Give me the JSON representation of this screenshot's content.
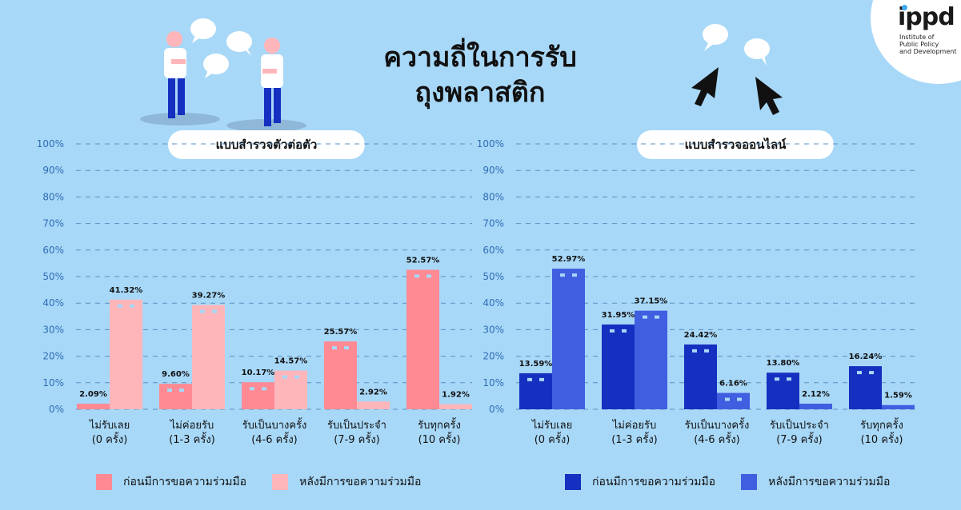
{
  "title_line1": "ความถี่ในการรับ",
  "title_line2": "ถุงพลาสติก",
  "logo": {
    "name": "ippd",
    "subtitle_lines": [
      "Institute of",
      "Public Policy",
      "and Development"
    ]
  },
  "colors": {
    "background": "#a8d8f8",
    "offline_before": "#ff8a94",
    "offline_after": "#ffb6ba",
    "online_before": "#1530c0",
    "online_after": "#3f5ee0"
  },
  "chart_data": [
    {
      "type": "bar",
      "title": "แบบสำรวจตัวต่อตัว",
      "ylim": [
        0,
        100
      ],
      "yticks": [
        "0%",
        "10%",
        "20%",
        "30%",
        "40%",
        "50%",
        "60%",
        "70%",
        "80%",
        "90%",
        "100%"
      ],
      "categories": [
        [
          "ไม่รับเลย",
          "(0 ครั้ง)"
        ],
        [
          "ไม่ค่อยรับ",
          "(1-3 ครั้ง)"
        ],
        [
          "รับเป็นบางครั้ง",
          "(4-6 ครั้ง)"
        ],
        [
          "รับเป็นประจำ",
          "(7-9 ครั้ง)"
        ],
        [
          "รับทุกครั้ง",
          "(10 ครั้ง)"
        ]
      ],
      "series": [
        {
          "name": "ก่อนมีการขอความร่วมมือ",
          "values": [
            2.09,
            9.6,
            10.17,
            25.57,
            52.57
          ],
          "labels": [
            "2.09%",
            "9.60%",
            "10.17%",
            "25.57%",
            "52.57%"
          ]
        },
        {
          "name": "หลังมีการขอความร่วมมือ",
          "values": [
            41.32,
            39.27,
            14.57,
            2.92,
            1.92
          ],
          "labels": [
            "41.32%",
            "39.27%",
            "14.57%",
            "2.92%",
            "1.92%"
          ]
        }
      ],
      "grid": true,
      "legend": "bottom"
    },
    {
      "type": "bar",
      "title": "แบบสำรวจออนไลน์",
      "ylim": [
        0,
        100
      ],
      "yticks": [
        "0%",
        "10%",
        "20%",
        "30%",
        "40%",
        "50%",
        "60%",
        "70%",
        "80%",
        "90%",
        "100%"
      ],
      "categories": [
        [
          "ไม่รับเลย",
          "(0 ครั้ง)"
        ],
        [
          "ไม่ค่อยรับ",
          "(1-3 ครั้ง)"
        ],
        [
          "รับเป็นบางครั้ง",
          "(4-6 ครั้ง)"
        ],
        [
          "รับเป็นประจำ",
          "(7-9 ครั้ง)"
        ],
        [
          "รับทุกครั้ง",
          "(10 ครั้ง)"
        ]
      ],
      "series": [
        {
          "name": "ก่อนมีการขอความร่วมมือ",
          "values": [
            13.59,
            31.95,
            24.42,
            13.8,
            16.24
          ],
          "labels": [
            "13.59%",
            "31.95%",
            "24.42%",
            "13.80%",
            "16.24%"
          ]
        },
        {
          "name": "หลังมีการขอความร่วมมือ",
          "values": [
            52.97,
            37.15,
            6.16,
            2.12,
            1.59
          ],
          "labels": [
            "52.97%",
            "37.15%",
            "6.16%",
            "2.12%",
            "1.59%"
          ]
        }
      ],
      "grid": true,
      "legend": "bottom"
    }
  ]
}
